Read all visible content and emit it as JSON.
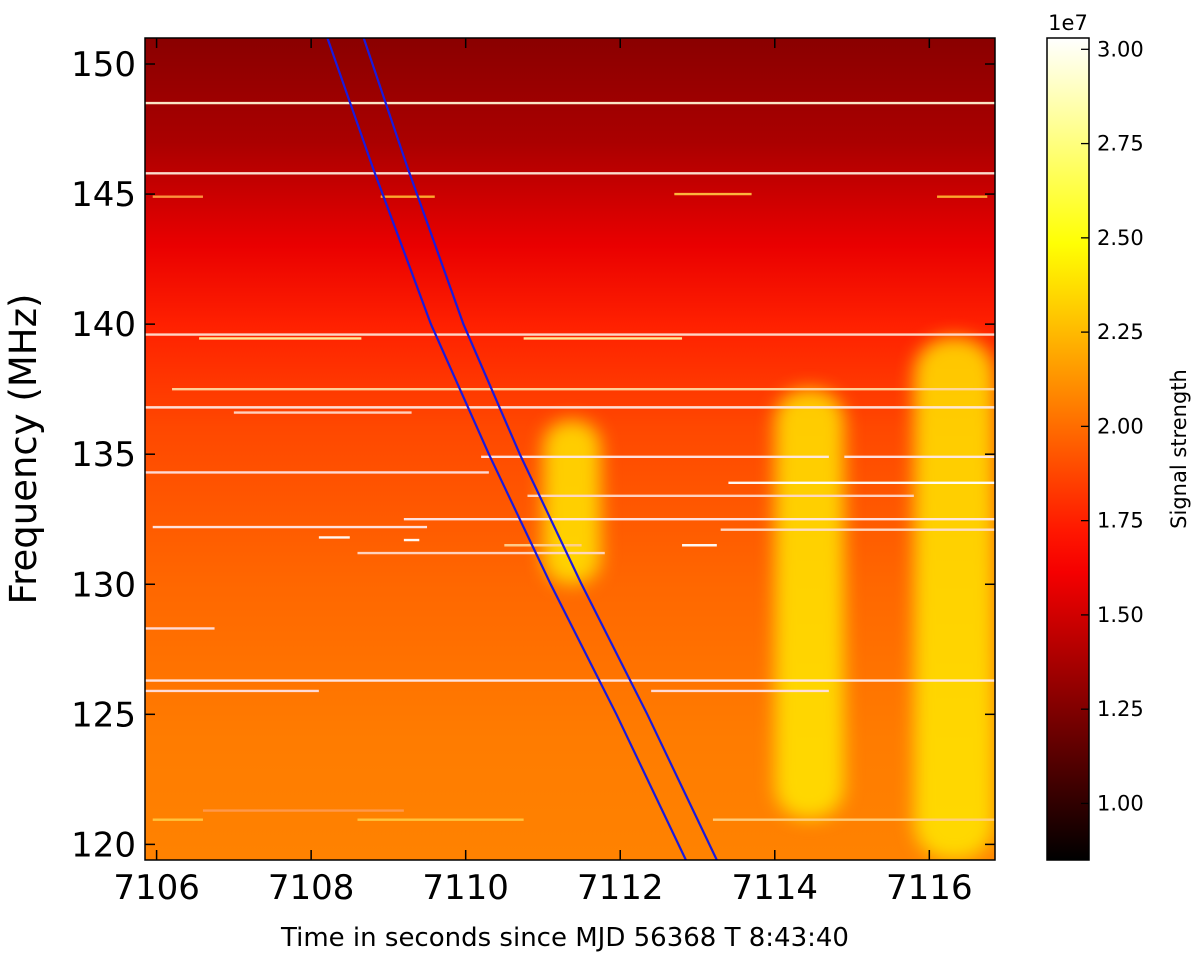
{
  "chart_data": {
    "type": "heatmap",
    "title": "",
    "xlabel": "Time in seconds since MJD 56368 T 8:43:40",
    "ylabel": "Frequency (MHz)",
    "xlim": [
      7105.85,
      7116.85
    ],
    "ylim": [
      119.4,
      151.0
    ],
    "x_ticks": [
      7106,
      7108,
      7110,
      7112,
      7114,
      7116
    ],
    "y_ticks": [
      120,
      125,
      130,
      135,
      140,
      145,
      150
    ],
    "grid": false,
    "colorbar": {
      "label": "Signal strength",
      "exponent_label": "1e7",
      "range": [
        0.85,
        3.03
      ],
      "ticks": [
        "1.00",
        "1.25",
        "1.50",
        "1.75",
        "2.00",
        "2.25",
        "2.50",
        "2.75",
        "3.00"
      ],
      "colormap": "hot"
    },
    "background_trend": [
      {
        "frequency": 151.0,
        "value": 1.28
      },
      {
        "frequency": 147.0,
        "value": 1.38
      },
      {
        "frequency": 143.0,
        "value": 1.58
      },
      {
        "frequency": 140.0,
        "value": 1.75
      },
      {
        "frequency": 136.0,
        "value": 1.88
      },
      {
        "frequency": 130.0,
        "value": 1.98
      },
      {
        "frequency": 124.0,
        "value": 2.05
      },
      {
        "frequency": 119.4,
        "value": 2.07
      }
    ],
    "bright_patches": [
      {
        "t_start": 7111.0,
        "t_end": 7111.75,
        "f_start": 130.0,
        "f_end": 136.3
      },
      {
        "t_start": 7114.0,
        "t_end": 7114.9,
        "f_start": 121.0,
        "f_end": 137.5
      },
      {
        "t_start": 7115.8,
        "t_end": 7116.85,
        "f_start": 119.4,
        "f_end": 139.5
      }
    ],
    "rfi_lines": [
      {
        "frequency": 148.5,
        "t_start": 7105.85,
        "t_end": 7116.85,
        "color": "#fff2d0"
      },
      {
        "frequency": 145.8,
        "t_start": 7105.85,
        "t_end": 7116.85,
        "color": "#ffe8d8"
      },
      {
        "frequency": 144.9,
        "t_start": 7105.95,
        "t_end": 7106.6,
        "color": "#ff9a40"
      },
      {
        "frequency": 144.9,
        "t_start": 7108.9,
        "t_end": 7109.6,
        "color": "#ffb030"
      },
      {
        "frequency": 145.0,
        "t_start": 7112.7,
        "t_end": 7113.7,
        "color": "#ffc040"
      },
      {
        "frequency": 144.9,
        "t_start": 7116.1,
        "t_end": 7116.75,
        "color": "#ffb030"
      },
      {
        "frequency": 139.6,
        "t_start": 7105.85,
        "t_end": 7116.85,
        "color": "#ffe0d0"
      },
      {
        "frequency": 139.45,
        "t_start": 7106.55,
        "t_end": 7108.65,
        "color": "#fff4a0"
      },
      {
        "frequency": 139.45,
        "t_start": 7110.75,
        "t_end": 7112.8,
        "color": "#fff4a0"
      },
      {
        "frequency": 137.5,
        "t_start": 7106.2,
        "t_end": 7116.85,
        "color": "#ffd8a0"
      },
      {
        "frequency": 136.8,
        "t_start": 7105.85,
        "t_end": 7116.85,
        "color": "#ffe8e0"
      },
      {
        "frequency": 136.6,
        "t_start": 7107.0,
        "t_end": 7109.3,
        "color": "#ffd8c8"
      },
      {
        "frequency": 134.9,
        "t_start": 7110.2,
        "t_end": 7114.7,
        "color": "#ffe8e8"
      },
      {
        "frequency": 134.9,
        "t_start": 7114.9,
        "t_end": 7116.85,
        "color": "#ffe8e8"
      },
      {
        "frequency": 134.3,
        "t_start": 7105.85,
        "t_end": 7110.3,
        "color": "#ffe0e0"
      },
      {
        "frequency": 133.9,
        "t_start": 7113.4,
        "t_end": 7116.85,
        "color": "#ffffff"
      },
      {
        "frequency": 133.4,
        "t_start": 7110.8,
        "t_end": 7115.8,
        "color": "#ffd8c8"
      },
      {
        "frequency": 132.5,
        "t_start": 7109.2,
        "t_end": 7116.85,
        "color": "#ffe8e8"
      },
      {
        "frequency": 132.2,
        "t_start": 7105.95,
        "t_end": 7109.5,
        "color": "#ffe8e8"
      },
      {
        "frequency": 132.1,
        "t_start": 7113.3,
        "t_end": 7116.85,
        "color": "#ffe0d0"
      },
      {
        "frequency": 131.8,
        "t_start": 7108.1,
        "t_end": 7108.5,
        "color": "#ffffff"
      },
      {
        "frequency": 131.7,
        "t_start": 7109.2,
        "t_end": 7109.4,
        "color": "#ffffff"
      },
      {
        "frequency": 131.5,
        "t_start": 7112.8,
        "t_end": 7113.25,
        "color": "#ffffff"
      },
      {
        "frequency": 131.5,
        "t_start": 7110.5,
        "t_end": 7111.5,
        "color": "#ffd090"
      },
      {
        "frequency": 131.2,
        "t_start": 7108.6,
        "t_end": 7111.8,
        "color": "#ffd8c8"
      },
      {
        "frequency": 128.3,
        "t_start": 7105.85,
        "t_end": 7106.75,
        "color": "#ffe0e0"
      },
      {
        "frequency": 126.3,
        "t_start": 7105.85,
        "t_end": 7116.85,
        "color": "#ffe8e8"
      },
      {
        "frequency": 125.9,
        "t_start": 7105.85,
        "t_end": 7108.1,
        "color": "#ffe0e0"
      },
      {
        "frequency": 125.9,
        "t_start": 7112.4,
        "t_end": 7114.7,
        "color": "#ffe0e0"
      },
      {
        "frequency": 121.3,
        "t_start": 7106.6,
        "t_end": 7109.2,
        "color": "#ff9a50"
      },
      {
        "frequency": 120.95,
        "t_start": 7105.95,
        "t_end": 7106.6,
        "color": "#ffc840"
      },
      {
        "frequency": 120.95,
        "t_start": 7108.6,
        "t_end": 7110.75,
        "color": "#ffc840"
      },
      {
        "frequency": 120.95,
        "t_start": 7113.2,
        "t_end": 7116.85,
        "color": "#ffd080"
      }
    ],
    "dispersion_curves": [
      {
        "points": [
          [
            7108.21,
            151.0
          ],
          [
            7108.8,
            146.0
          ],
          [
            7109.55,
            140.0
          ],
          [
            7110.3,
            135.0
          ],
          [
            7111.1,
            130.0
          ],
          [
            7111.95,
            125.0
          ],
          [
            7112.85,
            119.4
          ]
        ],
        "color": "#1a1adc"
      },
      {
        "points": [
          [
            7108.68,
            151.0
          ],
          [
            7109.25,
            146.0
          ],
          [
            7109.97,
            140.0
          ],
          [
            7110.7,
            135.0
          ],
          [
            7111.5,
            130.0
          ],
          [
            7112.35,
            125.0
          ],
          [
            7113.25,
            119.4
          ]
        ],
        "color": "#1a1adc"
      }
    ]
  }
}
